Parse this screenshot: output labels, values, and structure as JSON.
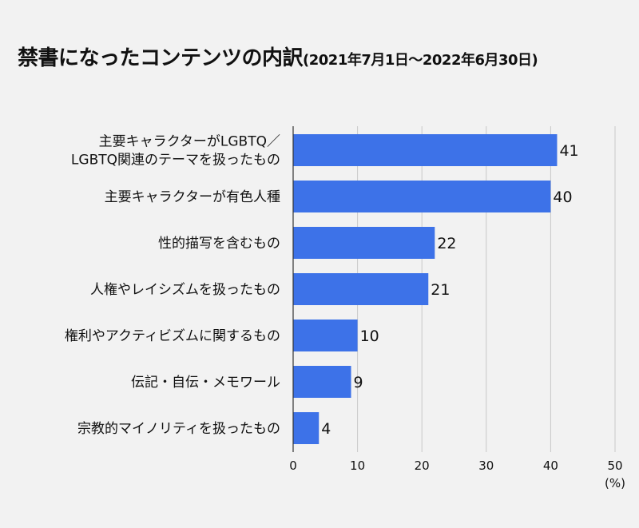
{
  "chart_data": {
    "type": "bar",
    "orientation": "horizontal",
    "title": "禁書になったコンテンツの内訳",
    "subtitle": "(2021年7月1日〜2022年6月30日)",
    "categories": [
      [
        "主要キャラクターがLGBTQ／",
        "LGBTQ関連のテーマを扱ったもの"
      ],
      [
        "主要キャラクターが有色人種"
      ],
      [
        "性的描写を含むもの"
      ],
      [
        "人権やレイシズムを扱ったもの"
      ],
      [
        "権利やアクティビズムに関するもの"
      ],
      [
        "伝記・自伝・メモワール"
      ],
      [
        "宗教的マイノリティを扱ったもの"
      ]
    ],
    "values": [
      41,
      40,
      22,
      21,
      10,
      9,
      4
    ],
    "xlim": [
      0,
      50
    ],
    "xticks": [
      0,
      10,
      20,
      30,
      40,
      50
    ],
    "xlabel": "(%)",
    "ylabel": "",
    "grid": "vertical",
    "bar_color": "#3d72e8",
    "grid_color": "#c8c8c8",
    "axis_color": "#333333"
  }
}
